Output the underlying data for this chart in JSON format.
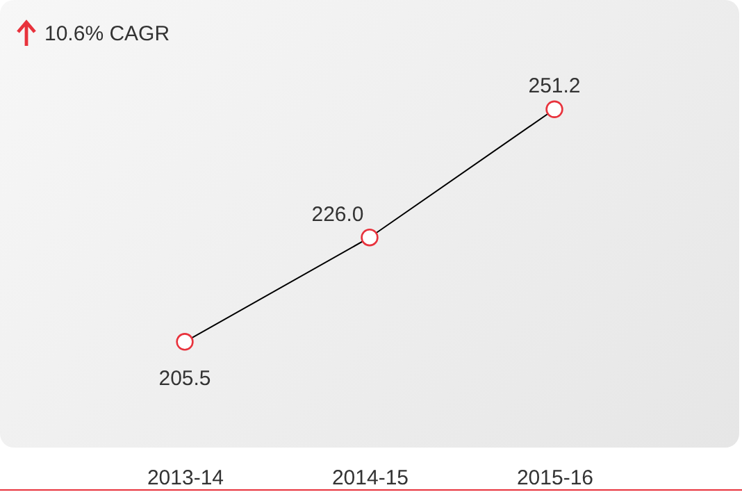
{
  "chart_data": {
    "type": "line",
    "categories": [
      "2013-14",
      "2014-15",
      "2015-16"
    ],
    "series": [
      {
        "color": "#000000",
        "values": [
          205.5,
          226.0,
          251.2
        ],
        "value_labels": [
          "205.5",
          "226.0",
          "251.2"
        ]
      }
    ],
    "marker": "circle",
    "line_style": "solid",
    "annotations": [
      "10.6% CAGR"
    ]
  }
}
